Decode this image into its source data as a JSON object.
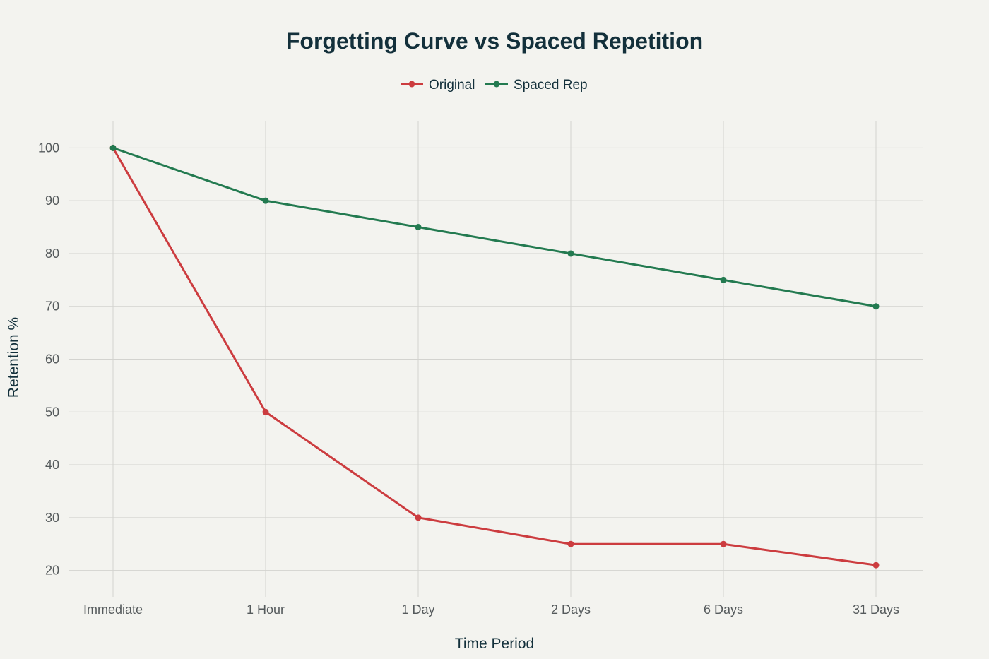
{
  "chart_data": {
    "type": "line",
    "title": "Forgetting Curve vs Spaced Repetition",
    "xlabel": "Time Period",
    "ylabel": "Retention %",
    "categories": [
      "Immediate",
      "1 Hour",
      "1 Day",
      "2 Days",
      "6 Days",
      "31 Days"
    ],
    "yticks": [
      20,
      30,
      40,
      50,
      60,
      70,
      80,
      90,
      100
    ],
    "ylim": [
      15,
      105
    ],
    "grid": true,
    "legend_position": "top-center",
    "series": [
      {
        "name": "Original",
        "color": "#cc3c3f",
        "values": [
          100,
          50,
          30,
          25,
          25,
          21
        ]
      },
      {
        "name": "Spaced Rep",
        "color": "#237a50",
        "values": [
          100,
          90,
          85,
          80,
          75,
          70
        ]
      }
    ]
  }
}
